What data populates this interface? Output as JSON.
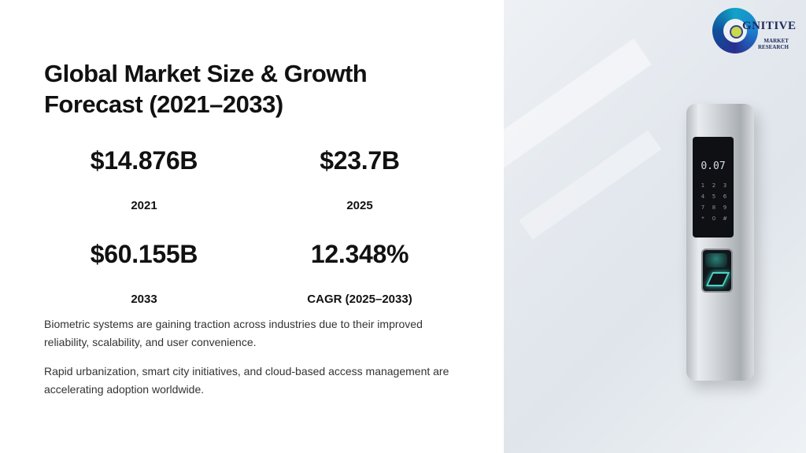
{
  "title": "Global Market Size & Growth Forecast (2021–2033)",
  "stats": [
    {
      "value": "$14.876B",
      "label": "2021"
    },
    {
      "value": "$23.7B",
      "label": "2025"
    },
    {
      "value": "$60.155B",
      "label": "2033"
    },
    {
      "value": "12.348%",
      "label": "CAGR (2025–2033)"
    }
  ],
  "paragraphs": [
    "Biometric systems are gaining traction across industries due to their improved reliability, scalability, and user convenience.",
    "Rapid urbanization, smart city initiatives, and cloud-based access management are accelerating adoption worldwide."
  ],
  "logo": {
    "word": "GNITIVE",
    "line1": "MARKET",
    "line2": "RESEARCH"
  },
  "device": {
    "display": "0.07",
    "keys": [
      "1",
      "2",
      "3",
      "4",
      "5",
      "6",
      "7",
      "8",
      "9",
      "*",
      "0",
      "#"
    ]
  },
  "colors": {
    "accent_teal": "#4fd3c3",
    "logo_blue": "#1b7fd1",
    "logo_lime": "#c8d94a"
  }
}
